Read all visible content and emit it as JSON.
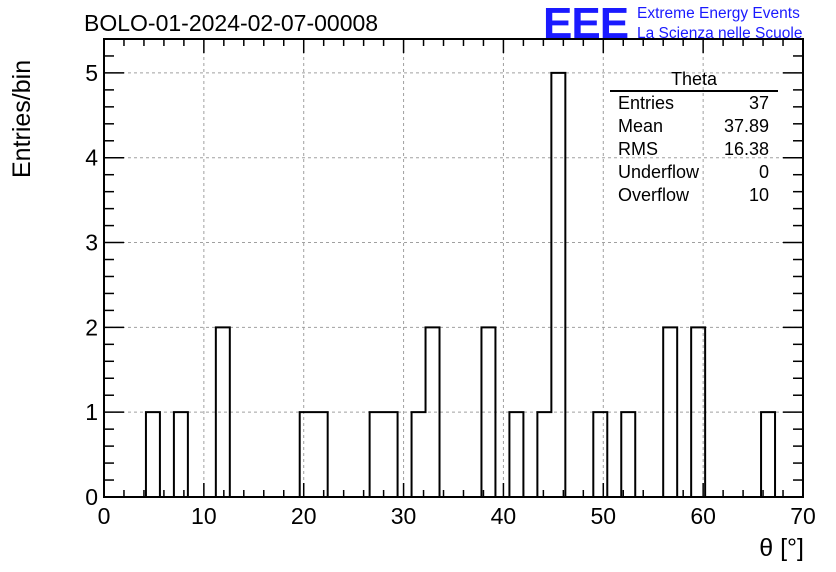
{
  "header": {
    "run_title": "BOLO-01-2024-02-07-00008",
    "logo_mark": "EEE",
    "logo_line1": "Extreme Energy Events",
    "logo_line2": "La Scienza nelle Scuole",
    "logo_color": "#1a1aff"
  },
  "stats_box": {
    "title": "Theta",
    "rows": [
      {
        "label": "Entries",
        "value": "37"
      },
      {
        "label": "Mean",
        "value": "37.89"
      },
      {
        "label": "RMS",
        "value": "16.38"
      },
      {
        "label": "Underflow",
        "value": "0"
      },
      {
        "label": "Overflow",
        "value": "10"
      }
    ]
  },
  "chart_data": {
    "type": "bar",
    "xlabel": "θ [°]",
    "ylabel": "Entries/bin",
    "xlim": [
      0,
      70
    ],
    "ylim": [
      0,
      5.4
    ],
    "x_ticks": [
      0,
      10,
      20,
      30,
      40,
      50,
      60,
      70
    ],
    "y_ticks": [
      0,
      1,
      2,
      3,
      4,
      5
    ],
    "grid": true,
    "bin_width": 1.4,
    "bin_edges_start": 0,
    "values": [
      0,
      0,
      0,
      1,
      0,
      1,
      0,
      0,
      2,
      0,
      0,
      0,
      0,
      0,
      1,
      1,
      0,
      0,
      0,
      1,
      1,
      0,
      1,
      2,
      0,
      0,
      0,
      2,
      0,
      1,
      0,
      1,
      5,
      0,
      0,
      1,
      0,
      1,
      0,
      0,
      2,
      0,
      2,
      0,
      0,
      0,
      0,
      1,
      0,
      0
    ]
  }
}
